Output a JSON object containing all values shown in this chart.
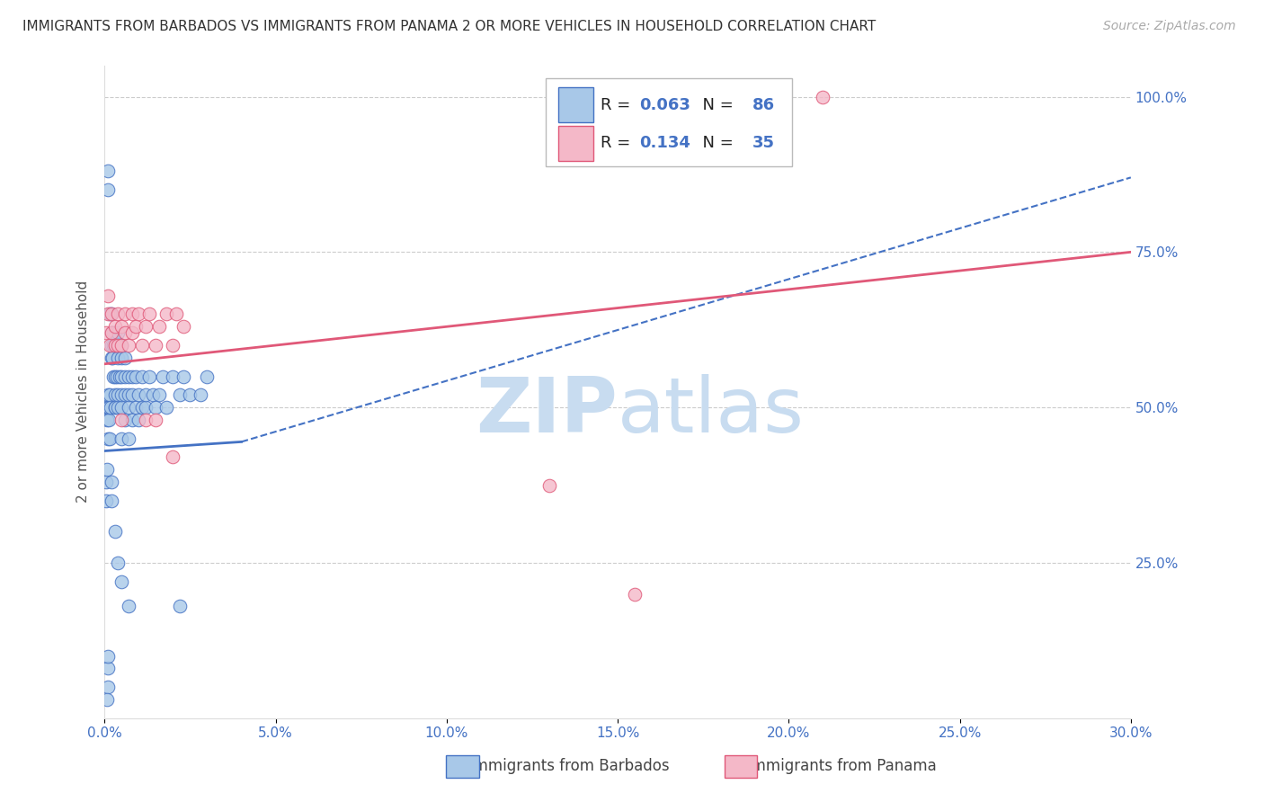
{
  "title": "IMMIGRANTS FROM BARBADOS VS IMMIGRANTS FROM PANAMA 2 OR MORE VEHICLES IN HOUSEHOLD CORRELATION CHART",
  "source": "Source: ZipAtlas.com",
  "ylabel": "2 or more Vehicles in Household",
  "barbados_R": 0.063,
  "barbados_N": 86,
  "panama_R": 0.134,
  "panama_N": 35,
  "barbados_color": "#A8C8E8",
  "panama_color": "#F4B8C8",
  "barbados_line_color": "#4472C4",
  "panama_line_color": "#E05878",
  "xmin": 0.0,
  "xmax": 0.3,
  "ymin": 0.0,
  "ymax": 1.05,
  "text_color_blue": "#4472C4",
  "text_color_dark": "#222222",
  "watermark_color": "#C8DCF0",
  "barbados_x": [
    0.0005,
    0.0008,
    0.001,
    0.001,
    0.001,
    0.0012,
    0.0013,
    0.0015,
    0.0015,
    0.0018,
    0.002,
    0.002,
    0.002,
    0.002,
    0.0022,
    0.0025,
    0.0025,
    0.0025,
    0.003,
    0.003,
    0.003,
    0.003,
    0.003,
    0.0032,
    0.0035,
    0.004,
    0.004,
    0.004,
    0.004,
    0.004,
    0.0045,
    0.005,
    0.005,
    0.005,
    0.005,
    0.005,
    0.005,
    0.006,
    0.006,
    0.006,
    0.006,
    0.007,
    0.007,
    0.007,
    0.007,
    0.008,
    0.008,
    0.008,
    0.009,
    0.009,
    0.01,
    0.01,
    0.011,
    0.011,
    0.012,
    0.012,
    0.013,
    0.014,
    0.015,
    0.016,
    0.017,
    0.018,
    0.02,
    0.022,
    0.023,
    0.025,
    0.028,
    0.03,
    0.001,
    0.001,
    0.001,
    0.0008,
    0.0005,
    0.0005,
    0.0007,
    0.001,
    0.001,
    0.0015,
    0.002,
    0.002,
    0.003,
    0.004,
    0.005,
    0.007,
    0.022
  ],
  "barbados_y": [
    0.5,
    0.48,
    0.45,
    0.5,
    0.52,
    0.48,
    0.5,
    0.45,
    0.52,
    0.5,
    0.58,
    0.6,
    0.62,
    0.65,
    0.58,
    0.55,
    0.6,
    0.62,
    0.5,
    0.52,
    0.55,
    0.6,
    0.62,
    0.5,
    0.55,
    0.5,
    0.52,
    0.58,
    0.6,
    0.62,
    0.55,
    0.45,
    0.5,
    0.52,
    0.55,
    0.58,
    0.6,
    0.48,
    0.52,
    0.55,
    0.58,
    0.45,
    0.5,
    0.52,
    0.55,
    0.48,
    0.52,
    0.55,
    0.5,
    0.55,
    0.48,
    0.52,
    0.5,
    0.55,
    0.5,
    0.52,
    0.55,
    0.52,
    0.5,
    0.52,
    0.55,
    0.5,
    0.55,
    0.52,
    0.55,
    0.52,
    0.52,
    0.55,
    0.05,
    0.08,
    0.1,
    0.03,
    0.35,
    0.38,
    0.4,
    0.85,
    0.88,
    0.65,
    0.35,
    0.38,
    0.3,
    0.25,
    0.22,
    0.18,
    0.18
  ],
  "panama_x": [
    0.0005,
    0.001,
    0.001,
    0.0015,
    0.002,
    0.002,
    0.003,
    0.003,
    0.004,
    0.004,
    0.005,
    0.005,
    0.006,
    0.006,
    0.007,
    0.008,
    0.008,
    0.009,
    0.01,
    0.011,
    0.012,
    0.013,
    0.015,
    0.016,
    0.018,
    0.02,
    0.021,
    0.023,
    0.13,
    0.155,
    0.21,
    0.005,
    0.012,
    0.015,
    0.02
  ],
  "panama_y": [
    0.62,
    0.65,
    0.68,
    0.6,
    0.62,
    0.65,
    0.6,
    0.63,
    0.6,
    0.65,
    0.6,
    0.63,
    0.62,
    0.65,
    0.6,
    0.62,
    0.65,
    0.63,
    0.65,
    0.6,
    0.63,
    0.65,
    0.6,
    0.63,
    0.65,
    0.6,
    0.65,
    0.63,
    0.375,
    0.2,
    1.0,
    0.48,
    0.48,
    0.48,
    0.42
  ],
  "barbados_trend": [
    0.43,
    0.54
  ],
  "panama_trend": [
    0.57,
    0.75
  ],
  "barbados_dash_trend": [
    0.43,
    0.87
  ],
  "watermark": "ZIPatlas"
}
